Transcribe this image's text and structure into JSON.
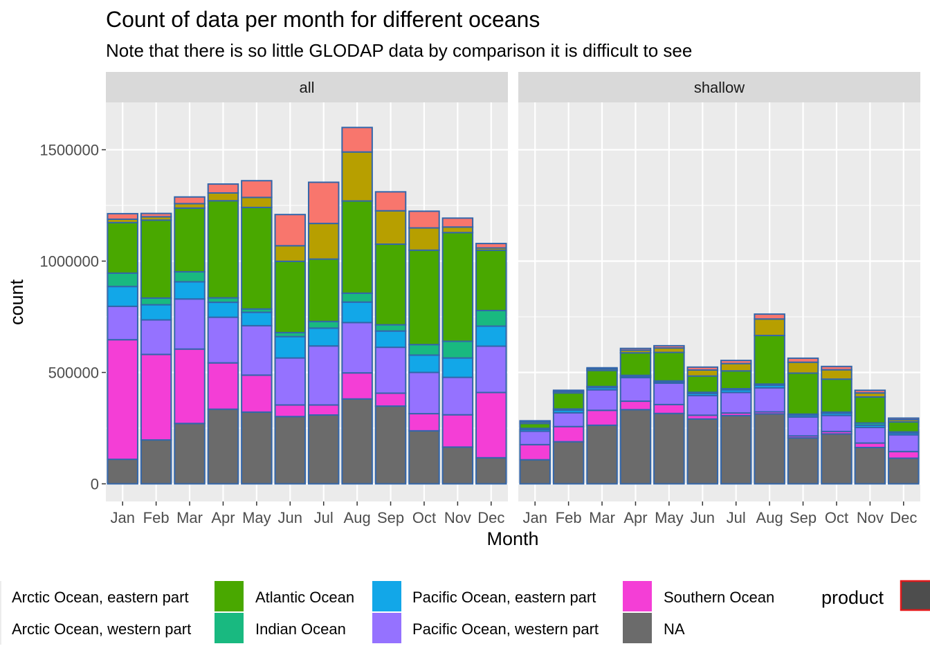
{
  "chart_data": {
    "type": "bar",
    "stacked": true,
    "title": "Count of data per month for different oceans",
    "subtitle": "Note that there is so little GLODAP data by comparison it is difficult to see",
    "xlabel": "Month",
    "ylabel": "count",
    "ylim": [
      0,
      1720000
    ],
    "yticks": [
      0,
      500000,
      1000000,
      1500000
    ],
    "ytick_labels": [
      "0",
      "500000",
      "1000000",
      "1500000"
    ],
    "categories": [
      "Jan",
      "Feb",
      "Mar",
      "Apr",
      "May",
      "Jun",
      "Jul",
      "Aug",
      "Sep",
      "Oct",
      "Nov",
      "Dec"
    ],
    "grid": true,
    "bar_outline_color": "#3366aa",
    "series_order": [
      "NA",
      "Southern Ocean",
      "Pacific Ocean, western part",
      "Pacific Ocean, eastern part",
      "Indian Ocean",
      "Atlantic Ocean",
      "Arctic Ocean, western part",
      "Arctic Ocean, eastern part"
    ],
    "series_colors": {
      "Arctic Ocean, eastern part": "#F8766D",
      "Arctic Ocean, western part": "#B79F00",
      "Atlantic Ocean": "#49A800",
      "Indian Ocean": "#19B980",
      "Pacific Ocean, eastern part": "#12A7E8",
      "Pacific Ocean, western part": "#9572FF",
      "Southern Ocean": "#F43ED6",
      "NA": "#6B6B6B"
    },
    "facets": [
      {
        "label": "all",
        "series": [
          {
            "name": "NA",
            "values": [
              110000,
              197000,
              271000,
              335000,
              322000,
              302000,
              309000,
              381000,
              349000,
              238000,
              165000,
              117000
            ]
          },
          {
            "name": "Southern Ocean",
            "values": [
              537000,
              384000,
              334000,
              208000,
              166000,
              52000,
              45000,
              117000,
              58000,
              77000,
              145000,
              293000
            ]
          },
          {
            "name": "Pacific Ocean, western part",
            "values": [
              150000,
              155000,
              225000,
              205000,
              222000,
              211000,
              265000,
              226000,
              206000,
              185000,
              168000,
              208000
            ]
          },
          {
            "name": "Pacific Ocean, eastern part",
            "values": [
              89000,
              68000,
              77000,
              67000,
              60000,
              96000,
              80000,
              92000,
              73000,
              78000,
              87000,
              90000
            ]
          },
          {
            "name": "Indian Ocean",
            "values": [
              60000,
              30000,
              45000,
              20000,
              15000,
              18000,
              30000,
              40000,
              28000,
              47000,
              75000,
              70000
            ]
          },
          {
            "name": "Atlantic Ocean",
            "values": [
              227000,
              350000,
              286000,
              436000,
              456000,
              320000,
              280000,
              414000,
              362000,
              424000,
              488000,
              271000
            ]
          },
          {
            "name": "Arctic Ocean, western part",
            "values": [
              15000,
              15000,
              20000,
              35000,
              45000,
              70000,
              160000,
              220000,
              150000,
              100000,
              25000,
              10000
            ]
          },
          {
            "name": "Arctic Ocean, eastern part",
            "values": [
              25000,
              15000,
              30000,
              40000,
              75000,
              140000,
              185000,
              110000,
              85000,
              75000,
              40000,
              20000
            ]
          }
        ]
      },
      {
        "label": "shallow",
        "series": [
          {
            "name": "NA",
            "values": [
              108000,
              189000,
              263000,
              333000,
              316000,
              291000,
              306000,
              314000,
              206000,
              224000,
              163000,
              115000
            ]
          },
          {
            "name": "Southern Ocean",
            "values": [
              68000,
              68000,
              67000,
              38000,
              40000,
              17000,
              12000,
              9000,
              9000,
              11000,
              20000,
              30000
            ]
          },
          {
            "name": "Pacific Ocean, western part",
            "values": [
              60000,
              62000,
              92000,
              106000,
              96000,
              88000,
              92000,
              108000,
              85000,
              72000,
              70000,
              75000
            ]
          },
          {
            "name": "Pacific Ocean, eastern part",
            "values": [
              8000,
              12000,
              10000,
              5000,
              5000,
              10000,
              12000,
              12000,
              8000,
              10000,
              10000,
              8000
            ]
          },
          {
            "name": "Indian Ocean",
            "values": [
              5000,
              5000,
              5000,
              5000,
              5000,
              5000,
              5000,
              5000,
              5000,
              5000,
              10000,
              5000
            ]
          },
          {
            "name": "Atlantic Ocean",
            "values": [
              22000,
              72000,
              72000,
              101000,
              128000,
              73000,
              80000,
              218000,
              184000,
              148000,
              117000,
              45000
            ]
          },
          {
            "name": "Arctic Ocean, western part",
            "values": [
              7000,
              7000,
              7000,
              12000,
              20000,
              27000,
              33000,
              74000,
              49000,
              42000,
              18000,
              10000
            ]
          },
          {
            "name": "Arctic Ocean, eastern part",
            "values": [
              5000,
              5000,
              5000,
              8000,
              10000,
              13000,
              14000,
              22000,
              18000,
              15000,
              12000,
              7000
            ]
          }
        ]
      }
    ],
    "legend": {
      "position": "bottom",
      "items": [
        {
          "label": "Arctic Ocean, eastern part"
        },
        {
          "label": "Arctic Ocean, western part"
        },
        {
          "label": "Atlantic Ocean",
          "color": "#49A800"
        },
        {
          "label": "Indian Ocean",
          "color": "#19B980"
        },
        {
          "label": "Pacific Ocean, eastern part",
          "color": "#12A7E8"
        },
        {
          "label": "Pacific Ocean, western part",
          "color": "#9572FF"
        },
        {
          "label": "Southern Ocean",
          "color": "#F43ED6"
        },
        {
          "label": "NA",
          "color": "#6B6B6B"
        }
      ],
      "product_title": "product",
      "product_key_color": "#4D4D4D",
      "product_key_border": "#E31A1C"
    }
  }
}
